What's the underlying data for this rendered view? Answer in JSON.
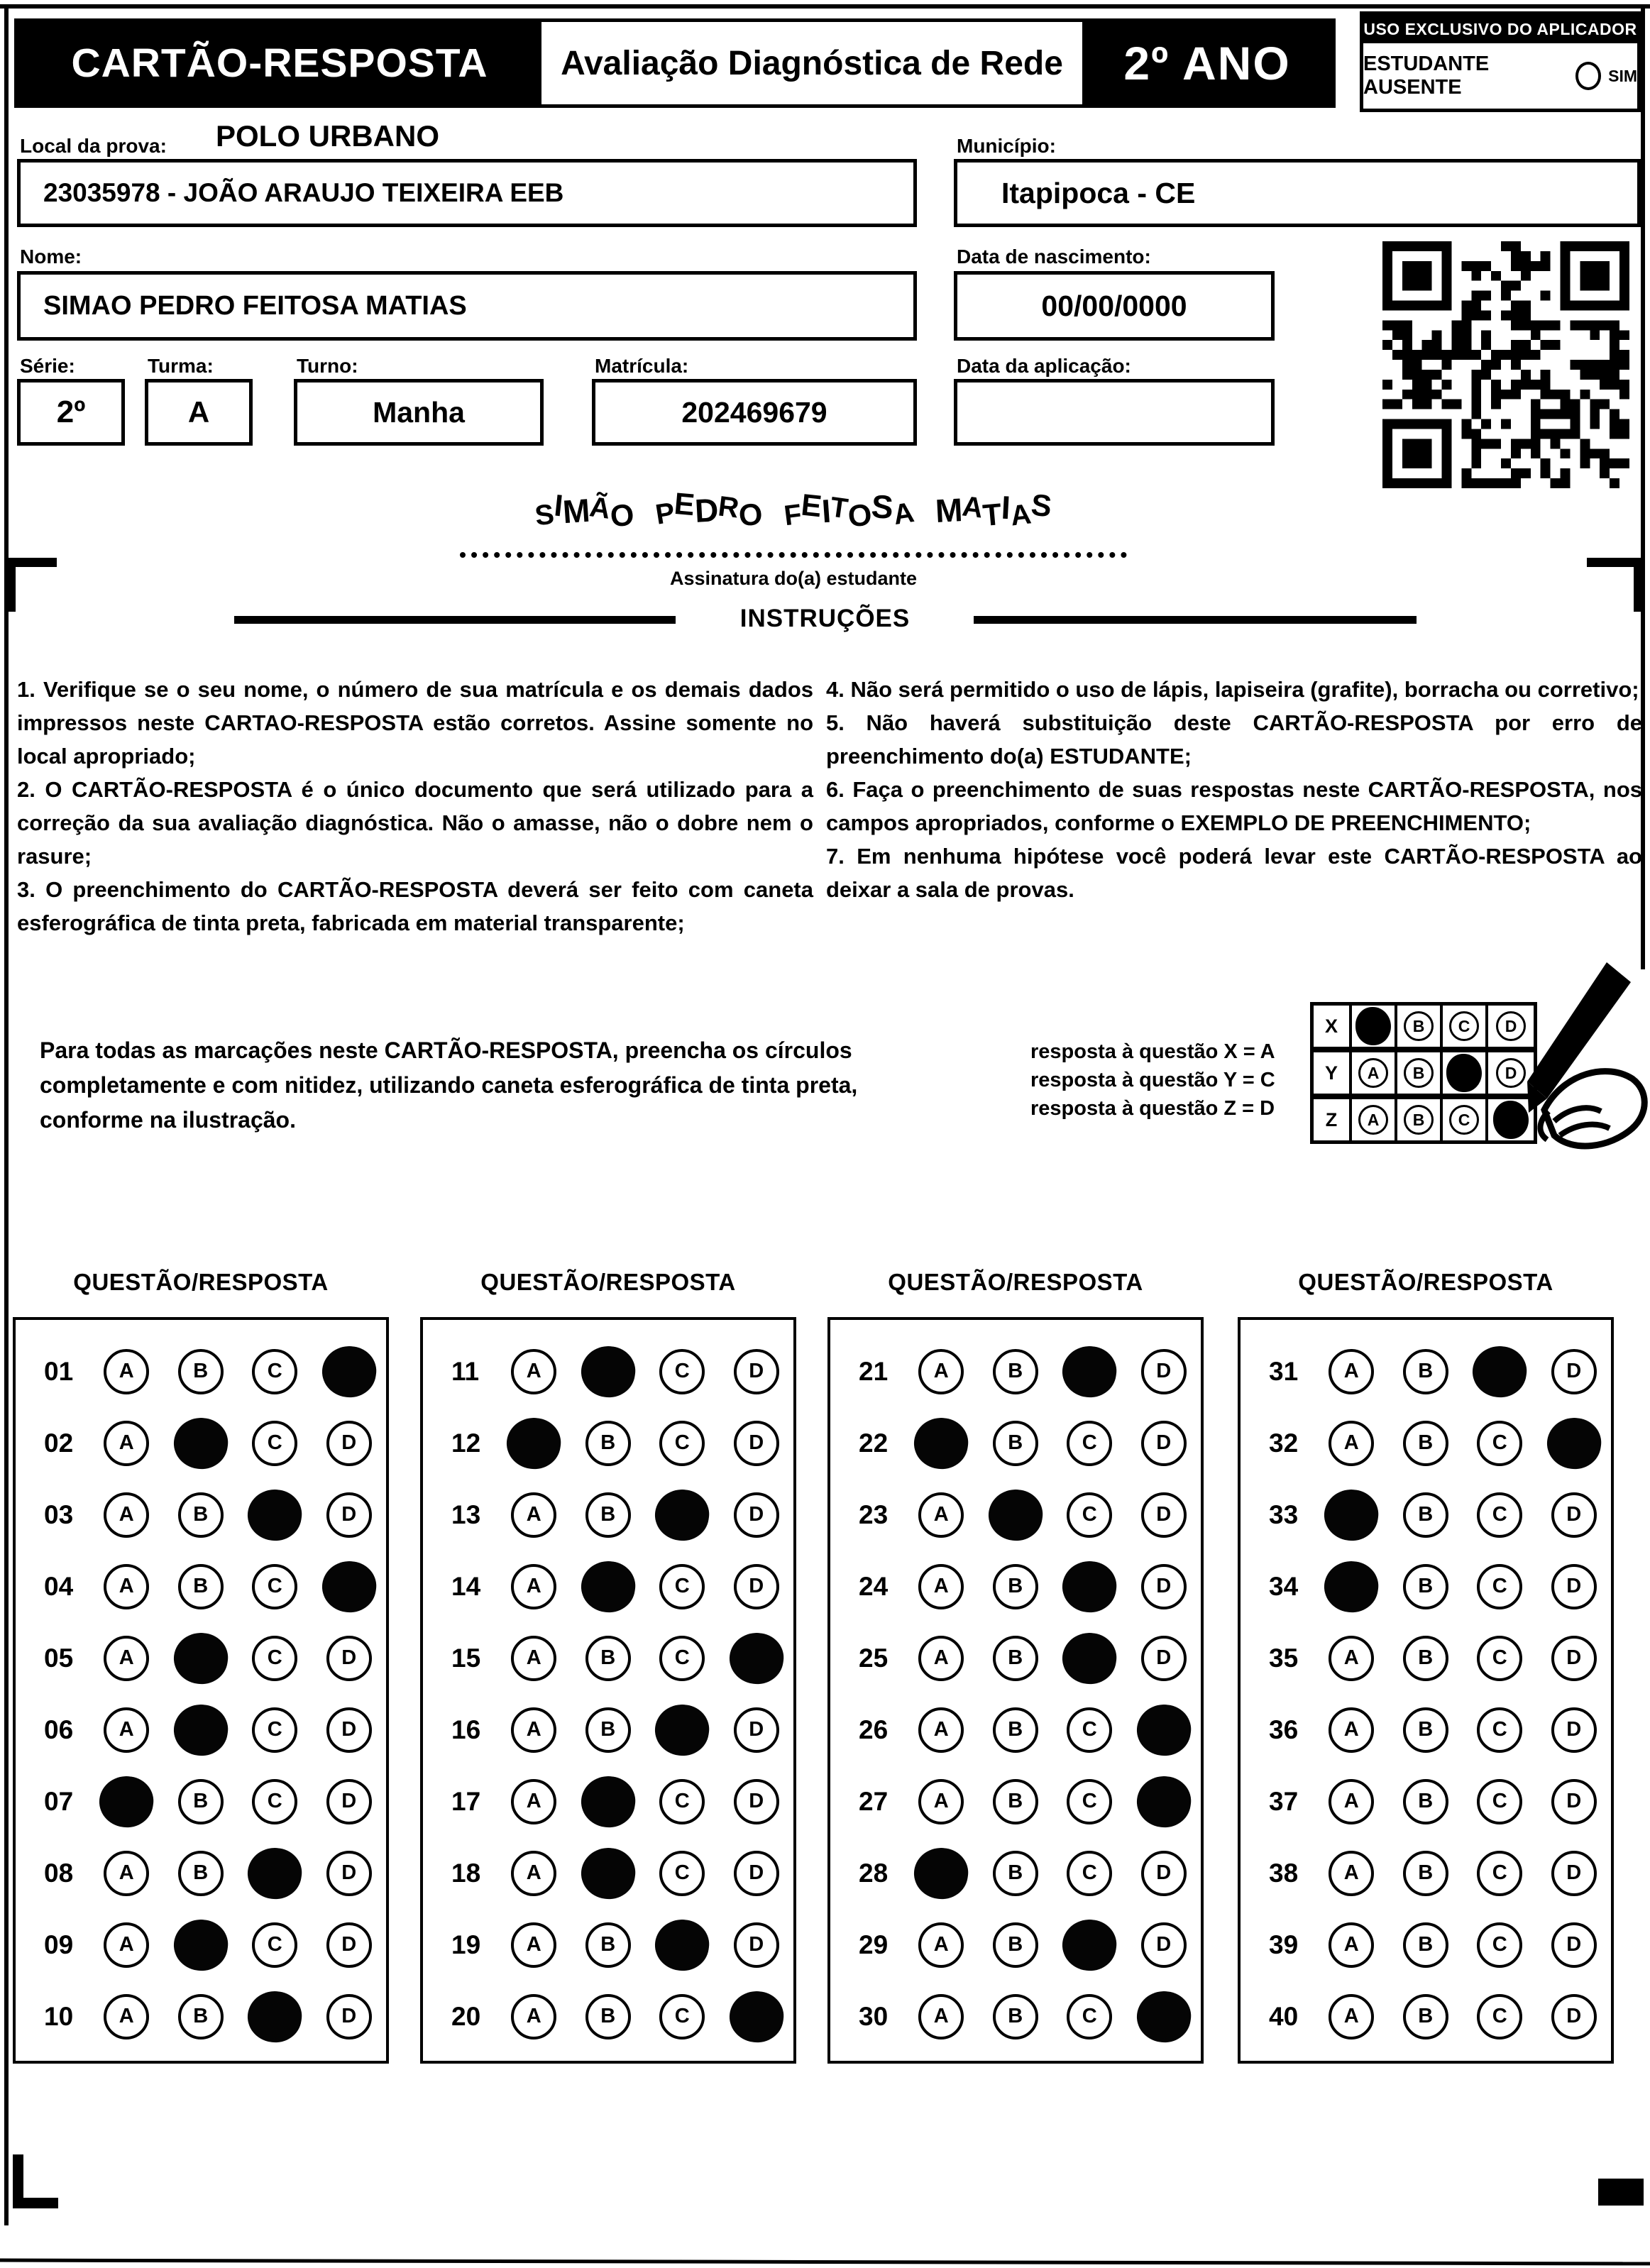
{
  "colors": {
    "ink": "#000000",
    "paper": "#ffffff"
  },
  "header": {
    "title": "CARTÃO-RESPOSTA",
    "subtitle": "Avaliação Diagnóstica de Rede",
    "grade": "2º ANO",
    "examiner_box": {
      "title": "USO EXCLUSIVO DO APLICADOR",
      "absent_label": "ESTUDANTE AUSENTE",
      "absent_option": "SIM"
    }
  },
  "form": {
    "local_label": "Local da prova:",
    "local_value": "POLO URBANO",
    "school_value": "23035978 - JOÃO ARAUJO TEIXEIRA EEB",
    "municipio_label": "Município:",
    "municipio_value": "Itapipoca - CE",
    "nome_label": "Nome:",
    "nome_value": "SIMAO PEDRO FEITOSA MATIAS",
    "nascimento_label": "Data de nascimento:",
    "nascimento_value": "00/00/0000",
    "serie_label": "Série:",
    "serie_value": "2º",
    "turma_label": "Turma:",
    "turma_value": "A",
    "turno_label": "Turno:",
    "turno_value": "Manha",
    "matricula_label": "Matrícula:",
    "matricula_value": "202469679",
    "aplicacao_label": "Data da aplicação:",
    "aplicacao_value": ""
  },
  "signature": {
    "value": "SIMÃO PEDRO FEITOSA MATIAS",
    "caption": "Assinatura do(a) estudante"
  },
  "instructions": {
    "title": "INSTRUÇÕES",
    "left": [
      "1. Verifique se o seu nome, o número de sua matrícula e os demais dados impressos neste CARTAO-RESPOSTA estão corretos. Assine somente no local apropriado;",
      "2. O CARTÃO-RESPOSTA é o único documento que será utilizado para a correção da sua avaliação diagnóstica. Não o amasse, não o dobre nem o rasure;",
      "3. O preenchimento do CARTÃO-RESPOSTA deverá ser feito com caneta esferográfica de tinta preta, fabricada em material transparente;"
    ],
    "right": [
      "4. Não será permitido o uso de lápis, lapiseira (grafite), borracha ou corretivo;",
      "5. Não haverá substituição deste CARTÃO-RESPOSTA por erro de preenchimento do(a) ESTUDANTE;",
      "6. Faça o preenchimento de suas respostas neste CARTÃO-RESPOSTA, nos campos apropriados, conforme o EXEMPLO DE PREENCHIMENTO;",
      "7. Em nenhuma hipótese você poderá levar este CARTÃO-RESPOSTA ao deixar a sala de provas."
    ]
  },
  "example": {
    "text": "Para todas as marcações neste CARTÃO-RESPOSTA, preencha os círculos completamente e com nitidez, utilizando caneta esferográfica de tinta preta, conforme na ilustração.",
    "legend": [
      "resposta à questão X = A",
      "resposta à questão Y = C",
      "resposta à questão Z = D"
    ],
    "grid": {
      "options": [
        "A",
        "B",
        "C",
        "D"
      ],
      "rows": [
        {
          "label": "X",
          "filled": "A"
        },
        {
          "label": "Y",
          "filled": "C"
        },
        {
          "label": "Z",
          "filled": "D"
        }
      ]
    }
  },
  "answers": {
    "column_header": "QUESTÃO/RESPOSTA",
    "options": [
      "A",
      "B",
      "C",
      "D"
    ],
    "columns": [
      [
        {
          "q": "01",
          "filled": "D"
        },
        {
          "q": "02",
          "filled": "B"
        },
        {
          "q": "03",
          "filled": "C"
        },
        {
          "q": "04",
          "filled": "D"
        },
        {
          "q": "05",
          "filled": "B"
        },
        {
          "q": "06",
          "filled": "B"
        },
        {
          "q": "07",
          "filled": "A"
        },
        {
          "q": "08",
          "filled": "C"
        },
        {
          "q": "09",
          "filled": "B"
        },
        {
          "q": "10",
          "filled": "C"
        }
      ],
      [
        {
          "q": "11",
          "filled": "B"
        },
        {
          "q": "12",
          "filled": "A"
        },
        {
          "q": "13",
          "filled": "C"
        },
        {
          "q": "14",
          "filled": "B"
        },
        {
          "q": "15",
          "filled": "D"
        },
        {
          "q": "16",
          "filled": "C"
        },
        {
          "q": "17",
          "filled": "B"
        },
        {
          "q": "18",
          "filled": "B"
        },
        {
          "q": "19",
          "filled": "C"
        },
        {
          "q": "20",
          "filled": "D"
        }
      ],
      [
        {
          "q": "21",
          "filled": "C"
        },
        {
          "q": "22",
          "filled": "A"
        },
        {
          "q": "23",
          "filled": "B"
        },
        {
          "q": "24",
          "filled": "C"
        },
        {
          "q": "25",
          "filled": "C"
        },
        {
          "q": "26",
          "filled": "D"
        },
        {
          "q": "27",
          "filled": "D"
        },
        {
          "q": "28",
          "filled": "A"
        },
        {
          "q": "29",
          "filled": "C"
        },
        {
          "q": "30",
          "filled": "D"
        }
      ],
      [
        {
          "q": "31",
          "filled": "C"
        },
        {
          "q": "32",
          "filled": "D"
        },
        {
          "q": "33",
          "filled": "A"
        },
        {
          "q": "34",
          "filled": "A"
        },
        {
          "q": "35",
          "filled": ""
        },
        {
          "q": "36",
          "filled": ""
        },
        {
          "q": "37",
          "filled": ""
        },
        {
          "q": "38",
          "filled": ""
        },
        {
          "q": "39",
          "filled": ""
        },
        {
          "q": "40",
          "filled": ""
        }
      ]
    ]
  }
}
